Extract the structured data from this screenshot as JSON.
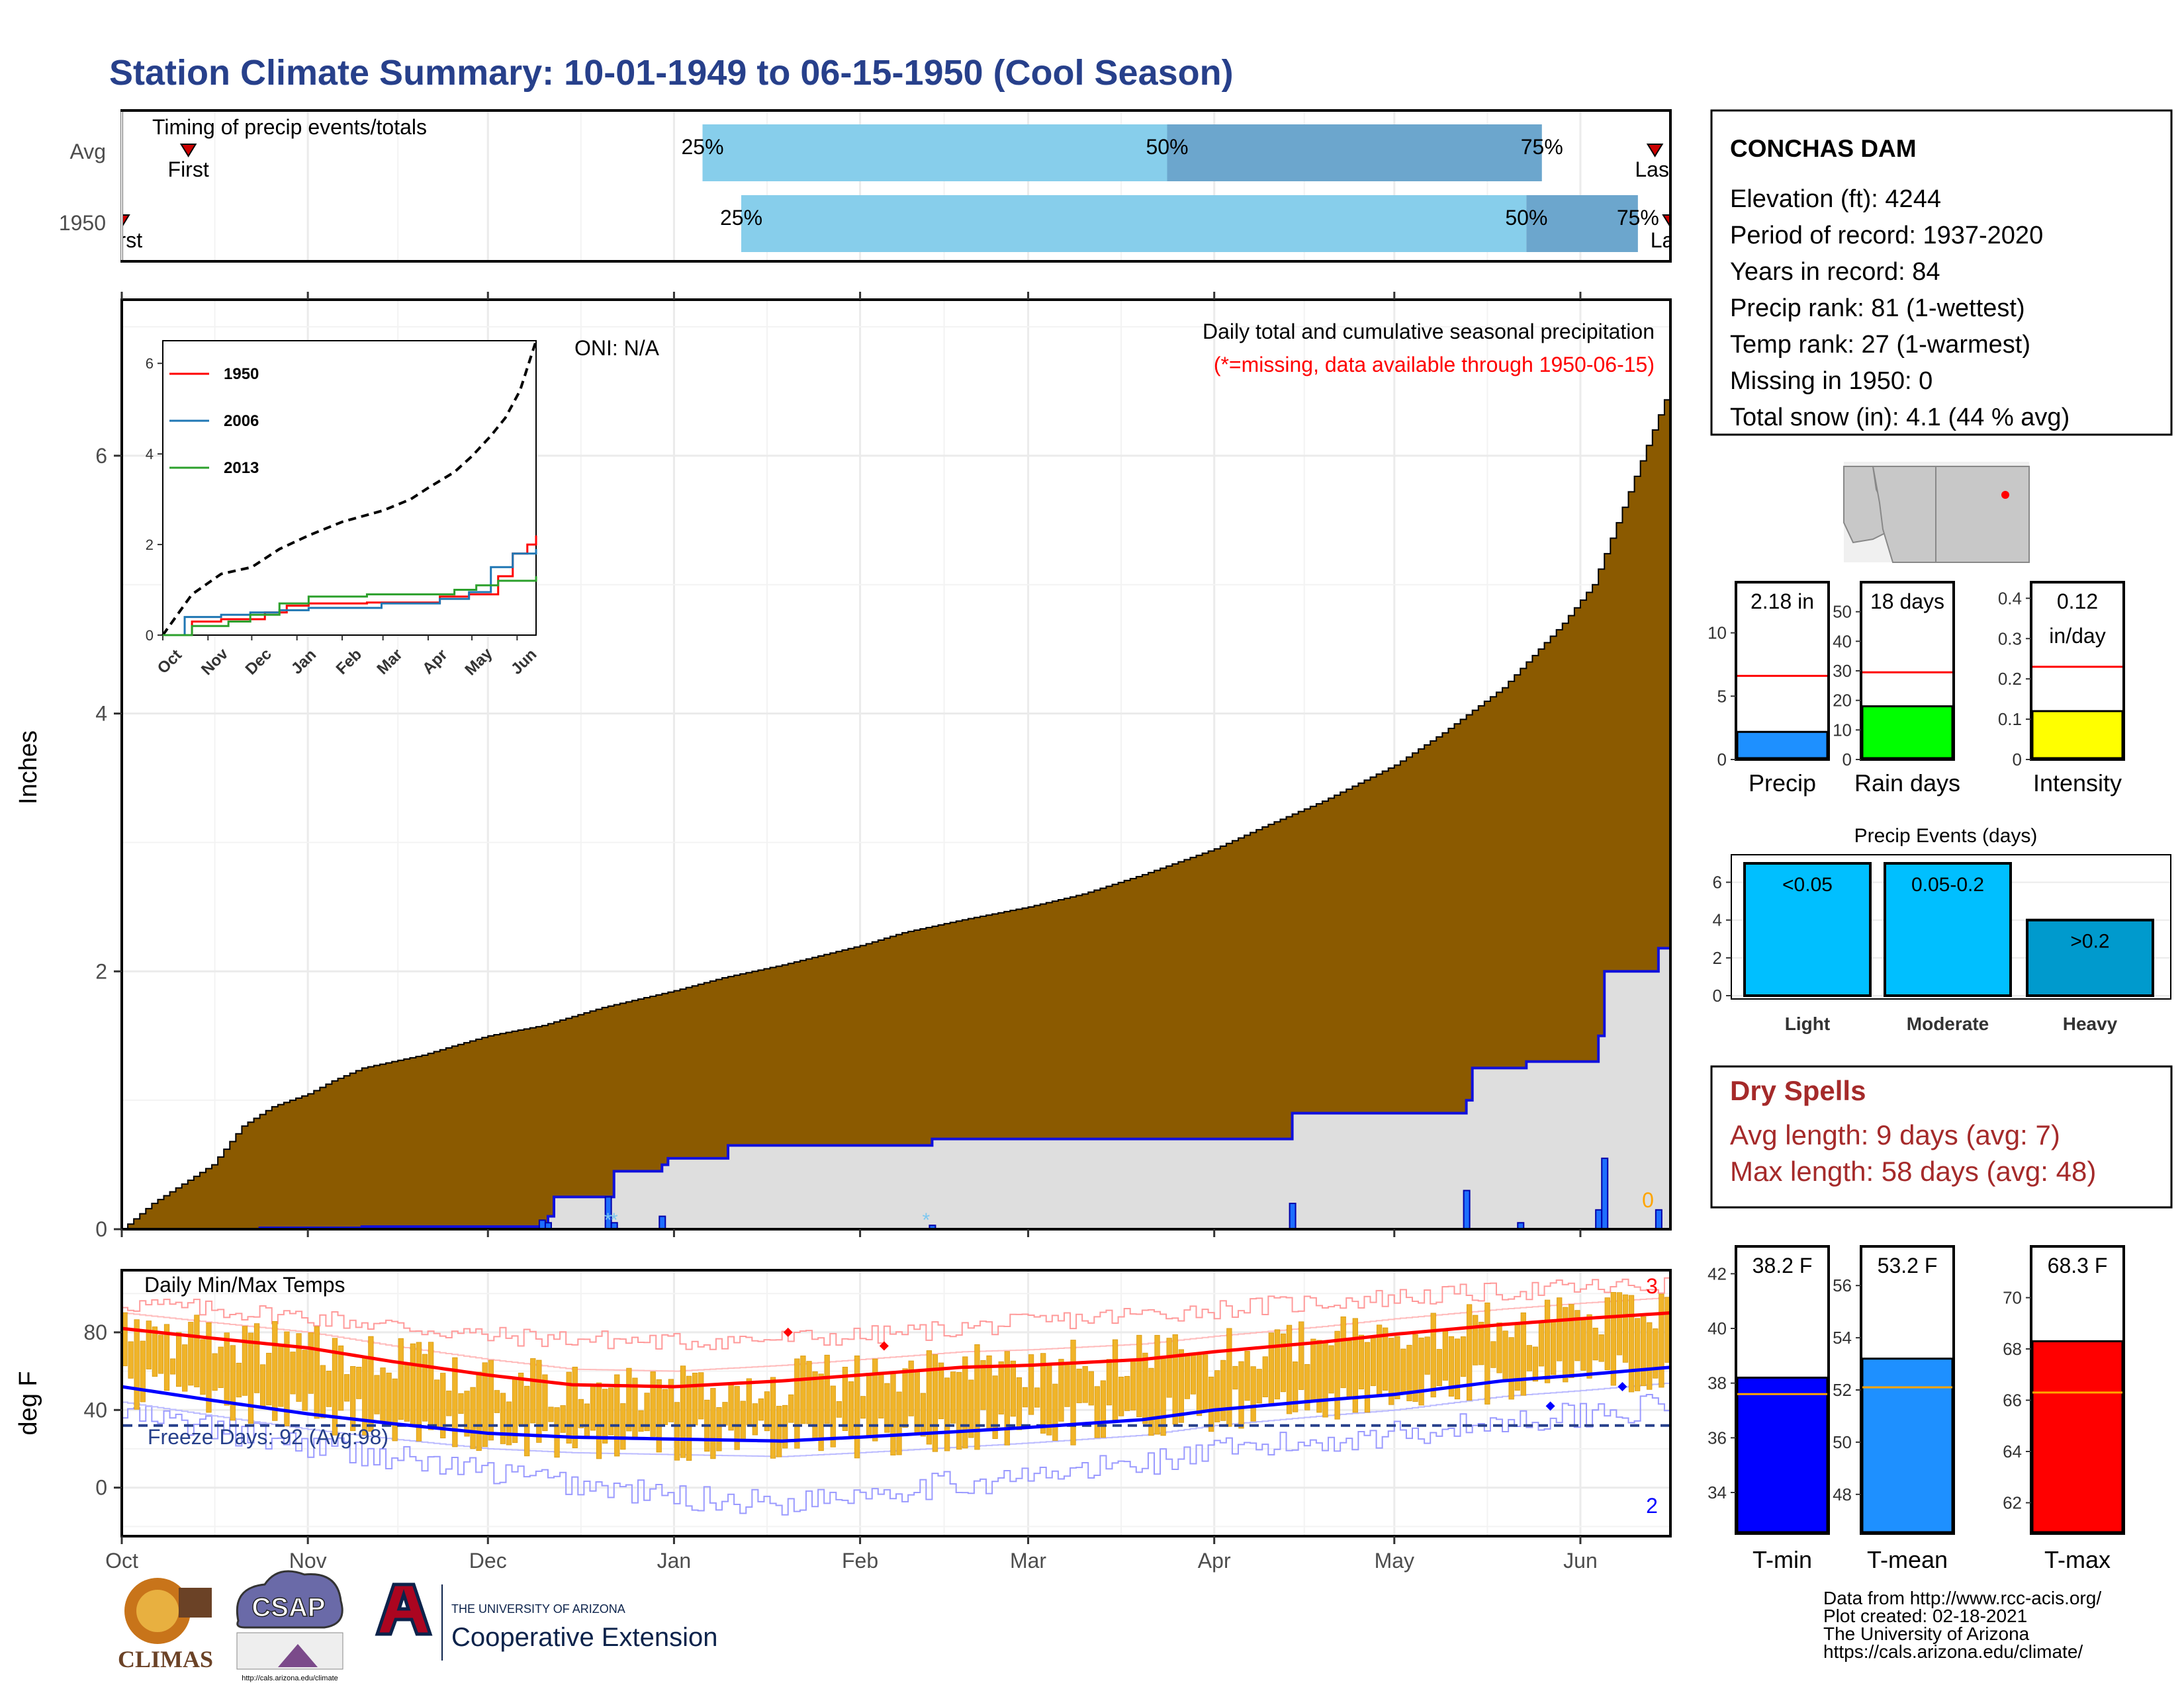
{
  "title": "Station Climate Summary: 10-01-1949 to 06-15-1950 (Cool Season)",
  "colors": {
    "title": "#27408b",
    "brown": "#8b5a00",
    "gray_fill": "#dedede",
    "blue_line": "#1010dd",
    "q_light": "#87ceeb",
    "q_dark": "#6ca6cd",
    "temp_bar": "#f0b429",
    "red": "#ff0000",
    "dry_spell": "#a52a2a",
    "freeze": "#27408b",
    "light_bar": "#00bfff",
    "heavy_bar": "#009acd",
    "rain_green": "#00ff00",
    "intensity_yellow": "#ffff00",
    "precip_blue": "#1e90ff"
  },
  "timing": {
    "label": "Timing of precip events/totals",
    "rows": [
      {
        "name": "Avg",
        "q25": 0.375,
        "q50": 0.675,
        "q75": 0.917,
        "first": 0.043,
        "last": 0.99,
        "lab25": "25%",
        "lab50": "50%",
        "lab75": "75%",
        "first_label": "First",
        "last_label": "Last"
      },
      {
        "name": "1950",
        "q25": 0.4,
        "q50": 0.907,
        "q75": 0.979,
        "first": 0.0,
        "last": 1.0,
        "lab25": "25%",
        "lab50": "50%",
        "lab75": "75%",
        "first_label": "First",
        "last_label": "Last"
      }
    ]
  },
  "station": {
    "name": "CONCHAS DAM",
    "lines": [
      "Elevation (ft): 4244",
      "Period of record: 1937-2020",
      "Years in record: 84",
      "Precip rank: 81 (1-wettest)",
      "Temp rank: 27 (1-warmest)",
      "Missing in 1950: 0",
      "Total snow (in): 4.1 (44 % avg)"
    ]
  },
  "chart_data": [
    {
      "type": "area",
      "name": "cumulative_precip",
      "title": "Daily total and cumulative seasonal precipitation",
      "subtitle": "(*=missing, data available through 1950-06-15)",
      "oni_label": "ONI: N/A",
      "ylabel": "Inches",
      "ylim": [
        0,
        7.2
      ],
      "yticks": [
        0,
        2,
        4,
        6
      ],
      "x_days": 258,
      "month_labels": [
        "Oct",
        "Nov",
        "Dec",
        "Jan",
        "Feb",
        "Mar",
        "Apr",
        "May",
        "Jun"
      ],
      "month_day_offsets": [
        0,
        31,
        61,
        92,
        123,
        151,
        182,
        212,
        243
      ],
      "avg_cumulative": [
        [
          0,
          0
        ],
        [
          5,
          0.2
        ],
        [
          10,
          0.35
        ],
        [
          15,
          0.5
        ],
        [
          20,
          0.8
        ],
        [
          25,
          0.95
        ],
        [
          31,
          1.05
        ],
        [
          35,
          1.15
        ],
        [
          40,
          1.25
        ],
        [
          45,
          1.3
        ],
        [
          50,
          1.35
        ],
        [
          55,
          1.42
        ],
        [
          61,
          1.5
        ],
        [
          70,
          1.58
        ],
        [
          80,
          1.72
        ],
        [
          92,
          1.85
        ],
        [
          100,
          1.95
        ],
        [
          110,
          2.05
        ],
        [
          123,
          2.2
        ],
        [
          130,
          2.3
        ],
        [
          140,
          2.4
        ],
        [
          151,
          2.5
        ],
        [
          160,
          2.6
        ],
        [
          170,
          2.75
        ],
        [
          182,
          2.95
        ],
        [
          190,
          3.12
        ],
        [
          200,
          3.32
        ],
        [
          212,
          3.6
        ],
        [
          220,
          3.85
        ],
        [
          230,
          4.2
        ],
        [
          240,
          4.7
        ],
        [
          245,
          5.0
        ],
        [
          250,
          5.6
        ],
        [
          255,
          6.2
        ],
        [
          258,
          6.55
        ]
      ],
      "observed_cumulative": [
        [
          0,
          0
        ],
        [
          22,
          0
        ],
        [
          23,
          0.01
        ],
        [
          40,
          0.02
        ],
        [
          70,
          0.03
        ],
        [
          71,
          0.1
        ],
        [
          72,
          0.25
        ],
        [
          81,
          0.25
        ],
        [
          82,
          0.45
        ],
        [
          90,
          0.5
        ],
        [
          91,
          0.55
        ],
        [
          101,
          0.65
        ],
        [
          134,
          0.65
        ],
        [
          135,
          0.7
        ],
        [
          194,
          0.7
        ],
        [
          195,
          0.9
        ],
        [
          223,
          0.9
        ],
        [
          224,
          1.0
        ],
        [
          224.5,
          1.25
        ],
        [
          233,
          1.25
        ],
        [
          234,
          1.3
        ],
        [
          245,
          1.3
        ],
        [
          246,
          1.5
        ],
        [
          247,
          2.0
        ],
        [
          255,
          2.0
        ],
        [
          256,
          2.18
        ],
        [
          258,
          2.18
        ]
      ],
      "daily_precip": [
        [
          70,
          0.07
        ],
        [
          71,
          0.05
        ],
        [
          81,
          0.25
        ],
        [
          82,
          0.05
        ],
        [
          90,
          0.1
        ],
        [
          135,
          0.03
        ],
        [
          195,
          0.2
        ],
        [
          224,
          0.3
        ],
        [
          233,
          0.05
        ],
        [
          246,
          0.15
        ],
        [
          247,
          0.55
        ],
        [
          256,
          0.15
        ]
      ],
      "missing_markers": [
        [
          81,
          "*"
        ],
        [
          82,
          "*"
        ],
        [
          134,
          "*"
        ]
      ],
      "end_label": "0",
      "inset": {
        "yticks": [
          0,
          2,
          4,
          6
        ],
        "ylim": [
          0,
          6.5
        ],
        "month_labels": [
          "Oct",
          "Nov",
          "Dec",
          "Jan",
          "Feb",
          "Mar",
          "Apr",
          "May",
          "Jun"
        ],
        "series": [
          {
            "name": "1950",
            "color": "#ff0000",
            "values": [
              [
                0,
                0
              ],
              [
                20,
                0.3
              ],
              [
                40,
                0.35
              ],
              [
                70,
                0.5
              ],
              [
                85,
                0.65
              ],
              [
                100,
                0.7
              ],
              [
                140,
                0.72
              ],
              [
                190,
                0.85
              ],
              [
                210,
                0.9
              ],
              [
                230,
                1.3
              ],
              [
                240,
                1.8
              ],
              [
                250,
                2.0
              ],
              [
                256,
                2.2
              ]
            ]
          },
          {
            "name": "2006",
            "color": "#1f77b4",
            "values": [
              [
                0,
                0
              ],
              [
                15,
                0.4
              ],
              [
                40,
                0.45
              ],
              [
                60,
                0.5
              ],
              [
                80,
                0.55
              ],
              [
                100,
                0.6
              ],
              [
                150,
                0.7
              ],
              [
                190,
                0.8
              ],
              [
                210,
                0.95
              ],
              [
                225,
                1.5
              ],
              [
                240,
                1.8
              ],
              [
                256,
                1.9
              ]
            ]
          },
          {
            "name": "2013",
            "color": "#2ca02c",
            "values": [
              [
                0,
                0
              ],
              [
                20,
                0.2
              ],
              [
                45,
                0.3
              ],
              [
                60,
                0.45
              ],
              [
                80,
                0.7
              ],
              [
                100,
                0.85
              ],
              [
                140,
                0.9
              ],
              [
                180,
                0.9
              ],
              [
                200,
                1.0
              ],
              [
                215,
                1.1
              ],
              [
                230,
                1.2
              ],
              [
                256,
                1.3
              ]
            ]
          }
        ],
        "avg": [
          [
            0,
            0
          ],
          [
            20,
            0.9
          ],
          [
            40,
            1.35
          ],
          [
            61,
            1.5
          ],
          [
            80,
            1.9
          ],
          [
            100,
            2.2
          ],
          [
            123,
            2.5
          ],
          [
            151,
            2.75
          ],
          [
            170,
            3.0
          ],
          [
            182,
            3.25
          ],
          [
            200,
            3.6
          ],
          [
            212,
            3.95
          ],
          [
            225,
            4.4
          ],
          [
            235,
            4.8
          ],
          [
            245,
            5.4
          ],
          [
            250,
            5.9
          ],
          [
            256,
            6.5
          ]
        ]
      }
    },
    {
      "type": "bar",
      "name": "daily_temperature",
      "title": "Daily Min/Max Temps",
      "ylabel": "deg F",
      "ylim": [
        -25,
        112
      ],
      "yticks": [
        0,
        40,
        80
      ],
      "freeze_label": "Freeze Days: 92 (Avg:98)",
      "freeze_line": 32,
      "record_high_count": "3",
      "record_low_count": "2",
      "month_labels": [
        "Oct",
        "Nov",
        "Dec",
        "Jan",
        "Feb",
        "Mar",
        "Apr",
        "May",
        "Jun"
      ],
      "avg_max": [
        [
          0,
          82
        ],
        [
          15,
          77
        ],
        [
          31,
          72
        ],
        [
          45,
          65
        ],
        [
          61,
          58
        ],
        [
          75,
          53
        ],
        [
          92,
          52
        ],
        [
          110,
          55
        ],
        [
          123,
          58
        ],
        [
          140,
          62
        ],
        [
          151,
          63
        ],
        [
          170,
          66
        ],
        [
          182,
          70
        ],
        [
          200,
          75
        ],
        [
          212,
          79
        ],
        [
          230,
          84
        ],
        [
          243,
          87
        ],
        [
          258,
          90
        ]
      ],
      "avg_min": [
        [
          0,
          52
        ],
        [
          15,
          45
        ],
        [
          31,
          38
        ],
        [
          45,
          33
        ],
        [
          61,
          28
        ],
        [
          75,
          26
        ],
        [
          92,
          25
        ],
        [
          110,
          24
        ],
        [
          123,
          26
        ],
        [
          140,
          29
        ],
        [
          151,
          31
        ],
        [
          170,
          35
        ],
        [
          182,
          40
        ],
        [
          200,
          45
        ],
        [
          212,
          48
        ],
        [
          230,
          55
        ],
        [
          243,
          58
        ],
        [
          258,
          62
        ]
      ],
      "record_high": [
        [
          0,
          95
        ],
        [
          31,
          88
        ],
        [
          61,
          78
        ],
        [
          92,
          75
        ],
        [
          123,
          78
        ],
        [
          151,
          85
        ],
        [
          182,
          92
        ],
        [
          212,
          98
        ],
        [
          243,
          103
        ],
        [
          258,
          104
        ]
      ],
      "record_low": [
        [
          0,
          38
        ],
        [
          31,
          22
        ],
        [
          61,
          8
        ],
        [
          92,
          -5
        ],
        [
          110,
          -8
        ],
        [
          123,
          -2
        ],
        [
          151,
          5
        ],
        [
          182,
          18
        ],
        [
          212,
          28
        ],
        [
          243,
          38
        ],
        [
          258,
          42
        ]
      ],
      "range_bounds": {
        "max_start": 80,
        "max_end": 92,
        "min_start": 45,
        "min_end": 55
      },
      "record_markers_high": [
        [
          111,
          80,
          "#ff0000"
        ],
        [
          127,
          73,
          "#ff0000"
        ]
      ],
      "record_markers_low": [
        [
          238,
          42,
          "#0000ff"
        ],
        [
          250,
          52,
          "#0000ff"
        ]
      ]
    },
    {
      "type": "bar",
      "name": "precip_summary",
      "panels": [
        {
          "label": "Precip",
          "value_label": "2.18 in",
          "value": 2.18,
          "avg": 6.6,
          "ylim": [
            0,
            14
          ],
          "yticks": [
            0,
            5,
            10
          ],
          "color": "#1e90ff"
        },
        {
          "label": "Rain days",
          "value_label": "18 days",
          "value": 18,
          "avg": 29.5,
          "ylim": [
            0,
            60
          ],
          "yticks": [
            0,
            10,
            20,
            30,
            40,
            50
          ],
          "color": "#00ff00"
        },
        {
          "label": "Intensity",
          "value_label": "0.12",
          "value_label2": "in/day",
          "value": 0.12,
          "avg": 0.23,
          "ylim": [
            0,
            0.44
          ],
          "yticks": [
            0.0,
            0.1,
            0.2,
            0.3,
            0.4
          ],
          "color": "#ffff00"
        }
      ]
    },
    {
      "type": "bar",
      "name": "precip_events",
      "title": "Precip Events (days)",
      "categories": [
        "Light",
        "Moderate",
        "Heavy"
      ],
      "bin_labels": [
        "<0.05",
        "0.05-0.2",
        ">0.2"
      ],
      "values": [
        7,
        7,
        4
      ],
      "ylim": [
        0,
        7
      ],
      "yticks": [
        0,
        2,
        4,
        6
      ]
    },
    {
      "type": "bar",
      "name": "temp_summary",
      "panels": [
        {
          "label": "T-min",
          "value_label": "38.2 F",
          "value": 38.2,
          "avg": 37.6,
          "ylim": [
            32.5,
            43
          ],
          "yticks": [
            34,
            36,
            38,
            40,
            42
          ],
          "color": "#0000ff"
        },
        {
          "label": "T-mean",
          "value_label": "53.2 F",
          "value": 53.2,
          "avg": 52.1,
          "ylim": [
            46.5,
            57.5
          ],
          "yticks": [
            48,
            50,
            52,
            54,
            56
          ],
          "color": "#1e90ff"
        },
        {
          "label": "T-max",
          "value_label": "68.3 F",
          "value": 68.3,
          "avg": 66.3,
          "ylim": [
            60.8,
            72
          ],
          "yticks": [
            62,
            64,
            66,
            68,
            70
          ],
          "color": "#ff0000"
        }
      ]
    }
  ],
  "dry_spells": {
    "title": "Dry Spells",
    "avg_line": "Avg length: 9 days (avg: 7)",
    "max_line": "Max length: 58 days (avg: 48)"
  },
  "credits": {
    "lines": [
      "Data from http://www.rcc-acis.org/",
      "Plot created: 02-18-2021",
      "The University of Arizona",
      "https://cals.arizona.edu/climate/"
    ]
  },
  "logos": {
    "climas": "CLIMAS",
    "csap": "CSAP",
    "csap_url": "http://cals.arizona.edu/climate",
    "ua_small": "THE UNIVERSITY OF ARIZONA",
    "ua_big": "Cooperative Extension"
  }
}
